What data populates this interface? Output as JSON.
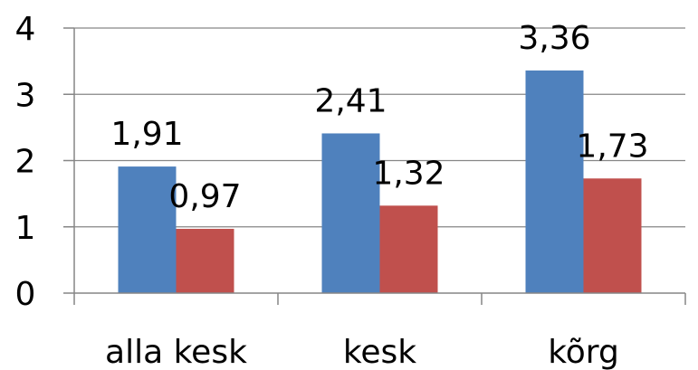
{
  "chart_data": {
    "type": "bar",
    "categories": [
      "alla kesk",
      "kesk",
      "kõrg"
    ],
    "series": [
      {
        "values": [
          1.91,
          2.41,
          3.36
        ],
        "labels": [
          "1,91",
          "2,41",
          "3,36"
        ],
        "color": "#4F81BD"
      },
      {
        "values": [
          0.97,
          1.32,
          1.73
        ],
        "labels": [
          "0,97",
          "1,32",
          "1,73"
        ],
        "color": "#C0504D"
      }
    ],
    "y_ticks": [
      "0",
      "1",
      "2",
      "3",
      "4"
    ],
    "ylim": [
      0,
      4
    ],
    "grid": true,
    "legend": "none",
    "title": "",
    "xlabel": "",
    "ylabel": ""
  }
}
